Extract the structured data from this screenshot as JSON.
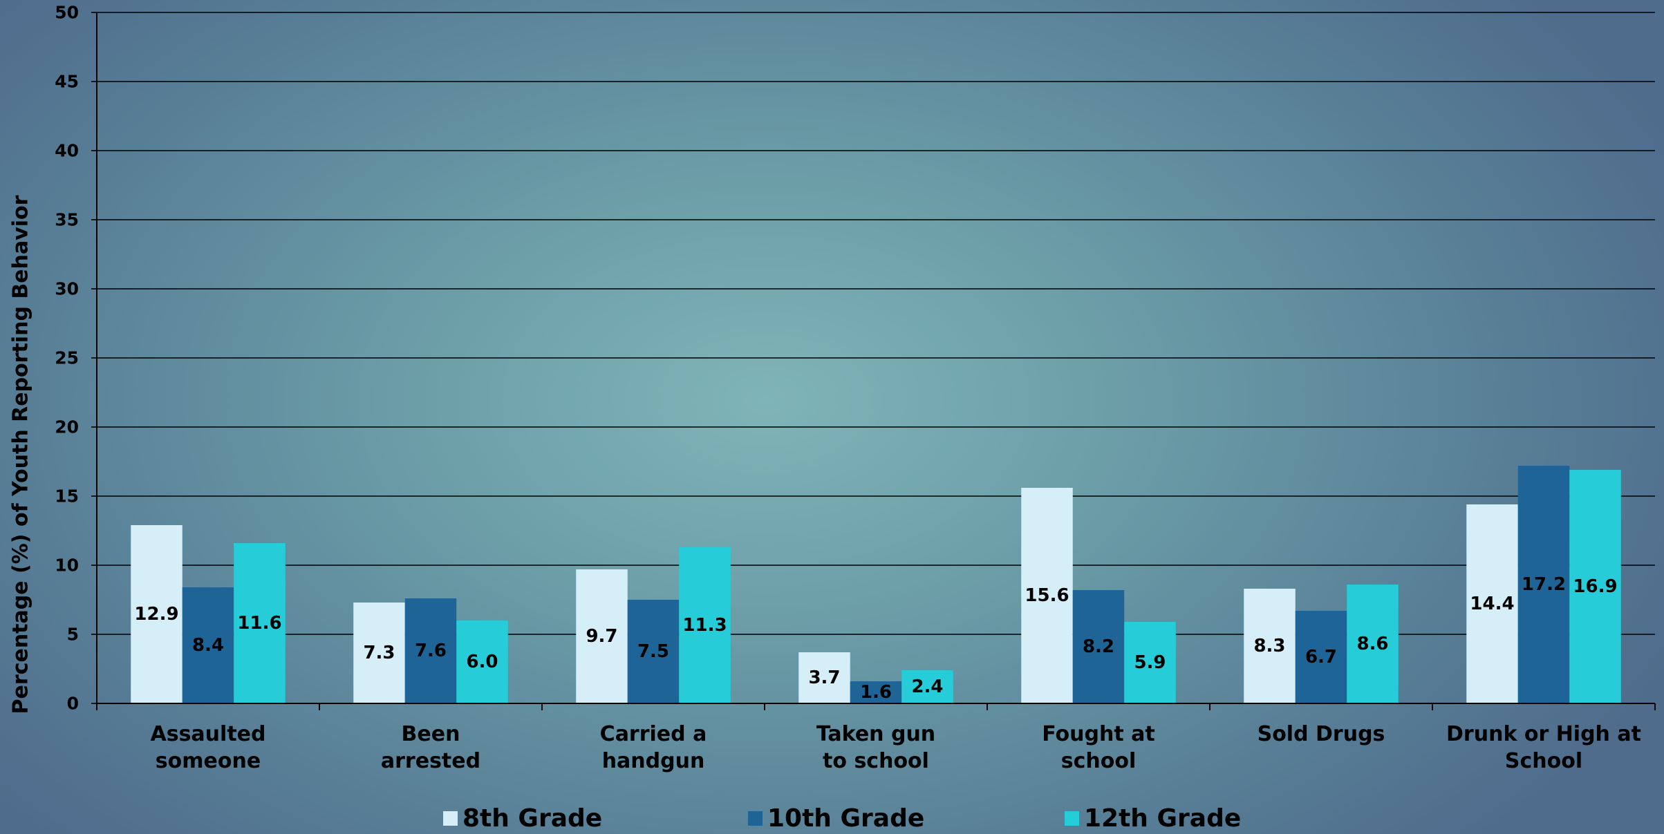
{
  "chart_data": {
    "type": "bar",
    "title": "",
    "ylabel": "Percentage (%) of Youth Reporting Behavior",
    "xlabel": "",
    "ylim": [
      0,
      50
    ],
    "yticks": [
      "0",
      "5",
      "10",
      "15",
      "20",
      "25",
      "30",
      "35",
      "40",
      "45",
      "50"
    ],
    "grid": true,
    "legend_position": "bottom",
    "categories": [
      [
        "Assaulted",
        "someone"
      ],
      [
        "Been",
        "arrested"
      ],
      [
        "Carried a",
        "handgun"
      ],
      [
        "Taken gun",
        "to school"
      ],
      [
        "Fought at",
        "school"
      ],
      [
        "Sold Drugs"
      ],
      [
        "Drunk or High at",
        "School"
      ]
    ],
    "series": [
      {
        "name": "8th Grade",
        "color": "#d6eef8",
        "values": [
          12.9,
          7.3,
          9.7,
          3.7,
          15.6,
          8.3,
          14.4
        ],
        "labels": [
          "12.9",
          "7.3",
          "9.7",
          "3.7",
          "15.6",
          "8.3",
          "14.4"
        ]
      },
      {
        "name": "10th Grade",
        "color": "#1f6496",
        "values": [
          8.4,
          7.6,
          7.5,
          1.6,
          8.2,
          6.7,
          17.2
        ],
        "labels": [
          "8.4",
          "7.6",
          "7.5",
          "1.6",
          "8.2",
          "6.7",
          "17.2"
        ]
      },
      {
        "name": "12th Grade",
        "color": "#26cdd8",
        "values": [
          11.6,
          6.0,
          11.3,
          2.4,
          5.9,
          8.6,
          16.9
        ],
        "labels": [
          "11.6",
          "6.0",
          "11.3",
          "2.4",
          "5.9",
          "8.6",
          "16.9"
        ]
      }
    ]
  }
}
